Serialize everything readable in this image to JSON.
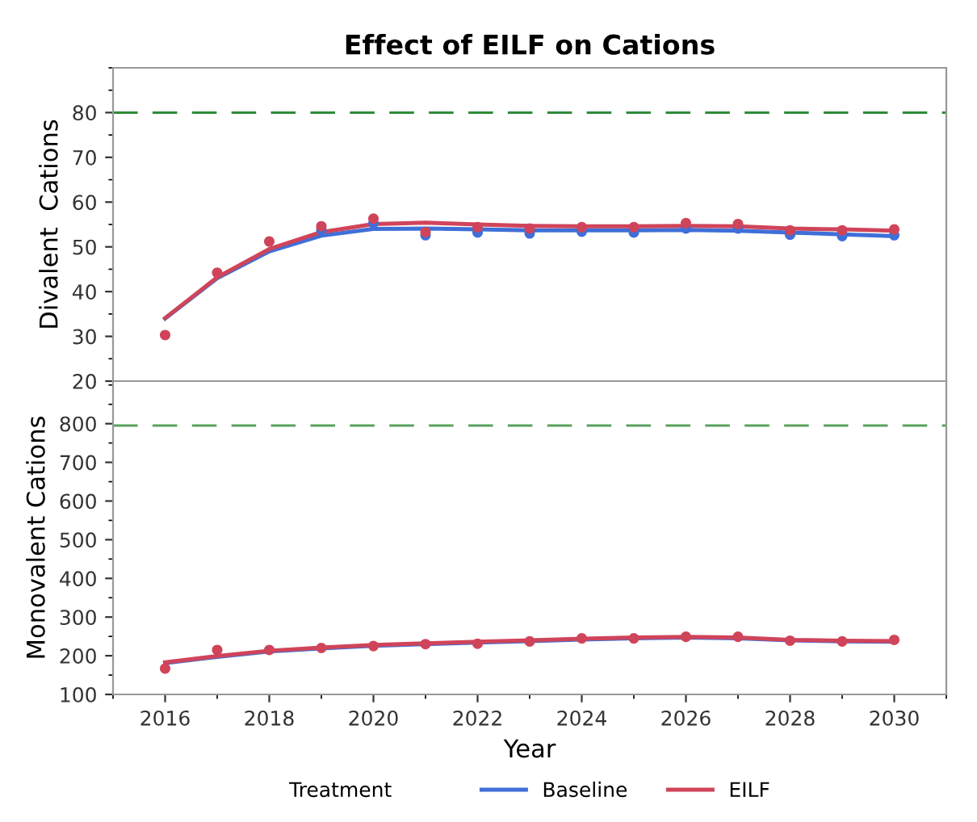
{
  "chart_data": [
    {
      "type": "line",
      "title": "Effect of EILF on Cations",
      "ylabel": "Divalent  Cations",
      "x": [
        2016,
        2017,
        2018,
        2019,
        2020,
        2021,
        2022,
        2023,
        2024,
        2025,
        2026,
        2027,
        2028,
        2029,
        2030
      ],
      "xlim": [
        2015,
        2031
      ],
      "xticks": [
        2016,
        2018,
        2020,
        2022,
        2024,
        2026,
        2028,
        2030
      ],
      "ylim": [
        20,
        90
      ],
      "yticks": [
        20,
        30,
        40,
        50,
        60,
        70,
        80
      ],
      "tick_labels": "y",
      "grid": false,
      "legend": false,
      "ref_lines": [
        {
          "axis": "y",
          "value": 80,
          "color": "#2e8b3a",
          "line_style": "dashed"
        }
      ],
      "series": [
        {
          "type": "scatter",
          "marker": "circle",
          "color": "#3f6fd8",
          "values": [
            null,
            null,
            null,
            53.8,
            55.3,
            52.6,
            53.2,
            53.0,
            53.4,
            53.2,
            54.1,
            54.1,
            52.7,
            52.4,
            52.6
          ]
        },
        {
          "type": "scatter",
          "marker": "circle",
          "color": "#d0445a",
          "values": [
            30.3,
            44.2,
            51.2,
            54.6,
            56.3,
            53.3,
            54.4,
            54.1,
            54.4,
            54.4,
            55.3,
            55.1,
            53.7,
            53.7,
            53.9
          ]
        },
        {
          "marker": "none",
          "color": "#3f6fd8",
          "values": [
            34.0,
            43.0,
            49.0,
            52.5,
            54.0,
            54.1,
            53.9,
            53.7,
            53.7,
            53.7,
            53.8,
            53.6,
            53.2,
            52.8,
            52.4
          ]
        },
        {
          "marker": "none",
          "color": "#d0445a",
          "values": [
            34.1,
            43.2,
            49.5,
            53.3,
            55.1,
            55.4,
            55.0,
            54.7,
            54.6,
            54.6,
            54.7,
            54.6,
            54.1,
            53.9,
            53.6
          ]
        }
      ]
    },
    {
      "type": "line",
      "ylabel": "Monovalent Cations",
      "xlabel": "Year",
      "legend_title": "Treatment",
      "legend": "bottom",
      "grid": false,
      "x": [
        2016,
        2017,
        2018,
        2019,
        2020,
        2021,
        2022,
        2023,
        2024,
        2025,
        2026,
        2027,
        2028,
        2029,
        2030
      ],
      "xlim": [
        2015,
        2031
      ],
      "xticks": [
        2016,
        2018,
        2020,
        2022,
        2024,
        2026,
        2028,
        2030
      ],
      "ylim": [
        100,
        910
      ],
      "yticks": [
        100,
        200,
        300,
        400,
        500,
        600,
        700,
        800
      ],
      "ref_lines": [
        {
          "axis": "y",
          "value": 795,
          "color": "#5aa05f",
          "line_style": "dashed"
        }
      ],
      "series": [
        {
          "type": "scatter",
          "marker": "circle",
          "color": "#d0445a",
          "values": [
            167,
            215,
            215,
            220,
            225,
            230,
            231,
            237,
            245,
            245,
            249,
            249,
            239,
            237,
            241
          ]
        },
        {
          "name": "Baseline",
          "marker": "none",
          "color": "#3f6fd8",
          "values": [
            181,
            197,
            211,
            219,
            226,
            230,
            234,
            238,
            242,
            245,
            247,
            245,
            240,
            237,
            236
          ]
        },
        {
          "name": "EILF",
          "marker": "none",
          "color": "#d0445a",
          "values": [
            183,
            199,
            213,
            221,
            228,
            232,
            236,
            240,
            244,
            247,
            249,
            247,
            241,
            239,
            238
          ]
        }
      ]
    }
  ]
}
